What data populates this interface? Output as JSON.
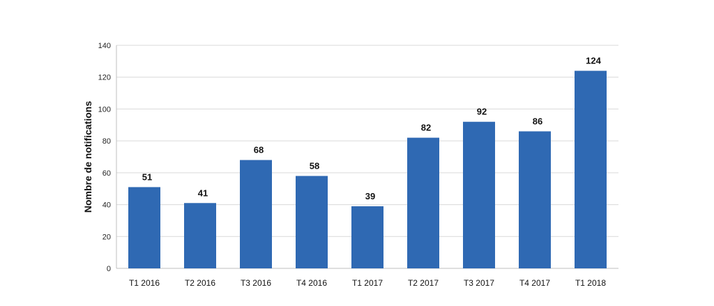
{
  "chart_data": {
    "type": "bar",
    "title": "",
    "xlabel": "",
    "ylabel": "Nombre de notifications",
    "categories": [
      "T1 2016",
      "T2 2016",
      "T3 2016",
      "T4 2016",
      "T1 2017",
      "T2 2017",
      "T3 2017",
      "T4 2017",
      "T1 2018"
    ],
    "values": [
      51,
      41,
      68,
      58,
      39,
      82,
      92,
      86,
      124
    ],
    "ylim": [
      0,
      140
    ],
    "yticks": [
      0,
      20,
      40,
      60,
      80,
      100,
      120,
      140
    ],
    "grid": true,
    "legend": "none",
    "colors": {
      "bar": "#2f69b3",
      "grid": "#d9d9d9",
      "axis": "#bfbfbf"
    }
  }
}
